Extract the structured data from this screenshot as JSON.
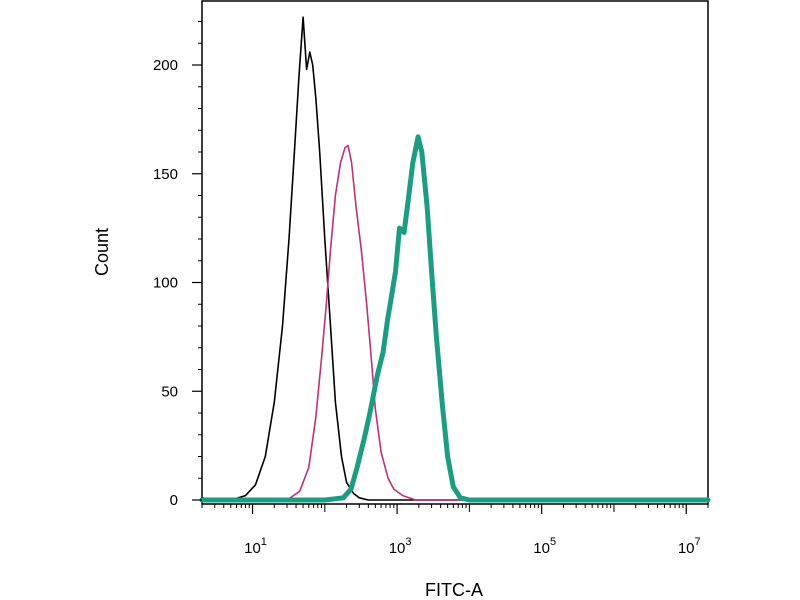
{
  "chart_data": {
    "type": "line",
    "title": "",
    "xlabel": "FITC-A",
    "ylabel": "Count",
    "x_scale": "log",
    "xlim": [
      2.0,
      20000000
    ],
    "ylim": [
      0,
      230
    ],
    "grid": false,
    "legend": "none",
    "x_ticks": [
      {
        "base": "10",
        "exp": "1",
        "value": 10
      },
      {
        "base": "10",
        "exp": "3",
        "value": 1000
      },
      {
        "base": "10",
        "exp": "5",
        "value": 100000
      },
      {
        "base": "10",
        "exp": "7",
        "value": 10000000
      }
    ],
    "y_ticks": [
      {
        "label": "0",
        "value": 0
      },
      {
        "label": "50",
        "value": 50
      },
      {
        "label": "100",
        "value": 100
      },
      {
        "label": "150",
        "value": 150
      },
      {
        "label": "200",
        "value": 200
      }
    ],
    "series": [
      {
        "color": "#000000",
        "width": 1.6,
        "points": [
          [
            2,
            1
          ],
          [
            3,
            0
          ],
          [
            5,
            0
          ],
          [
            8,
            2
          ],
          [
            11,
            7
          ],
          [
            15,
            20
          ],
          [
            20,
            45
          ],
          [
            26,
            80
          ],
          [
            32,
            120
          ],
          [
            38,
            160
          ],
          [
            44,
            195
          ],
          [
            50,
            222
          ],
          [
            56,
            198
          ],
          [
            62,
            206
          ],
          [
            68,
            200
          ],
          [
            75,
            185
          ],
          [
            85,
            160
          ],
          [
            100,
            120
          ],
          [
            120,
            80
          ],
          [
            140,
            45
          ],
          [
            170,
            20
          ],
          [
            200,
            8
          ],
          [
            250,
            3
          ],
          [
            300,
            1
          ],
          [
            400,
            0
          ],
          [
            1000,
            0
          ],
          [
            10000,
            0
          ],
          [
            20000000,
            0
          ]
        ]
      },
      {
        "color": "#c0307c",
        "width": 1.6,
        "points": [
          [
            2,
            0
          ],
          [
            30,
            0
          ],
          [
            45,
            4
          ],
          [
            60,
            15
          ],
          [
            75,
            38
          ],
          [
            90,
            65
          ],
          [
            105,
            90
          ],
          [
            120,
            115
          ],
          [
            140,
            140
          ],
          [
            165,
            155
          ],
          [
            190,
            162
          ],
          [
            210,
            163
          ],
          [
            235,
            155
          ],
          [
            270,
            135
          ],
          [
            320,
            115
          ],
          [
            380,
            90
          ],
          [
            440,
            65
          ],
          [
            500,
            42
          ],
          [
            600,
            22
          ],
          [
            750,
            10
          ],
          [
            900,
            5
          ],
          [
            1200,
            2
          ],
          [
            1800,
            0
          ],
          [
            20000000,
            0
          ]
        ]
      },
      {
        "color": "#1a9e82",
        "width": 5,
        "points": [
          [
            2,
            0
          ],
          [
            100,
            0
          ],
          [
            180,
            1
          ],
          [
            230,
            5
          ],
          [
            280,
            15
          ],
          [
            350,
            28
          ],
          [
            420,
            40
          ],
          [
            530,
            57
          ],
          [
            640,
            68
          ],
          [
            740,
            83
          ],
          [
            820,
            92
          ],
          [
            950,
            105
          ],
          [
            1080,
            125
          ],
          [
            1250,
            123
          ],
          [
            1450,
            140
          ],
          [
            1650,
            155
          ],
          [
            1950,
            167
          ],
          [
            2200,
            160
          ],
          [
            2600,
            135
          ],
          [
            3000,
            105
          ],
          [
            3500,
            75
          ],
          [
            4200,
            45
          ],
          [
            5000,
            20
          ],
          [
            6000,
            6
          ],
          [
            7500,
            1
          ],
          [
            10000,
            0
          ],
          [
            20000000,
            0
          ]
        ]
      }
    ]
  }
}
